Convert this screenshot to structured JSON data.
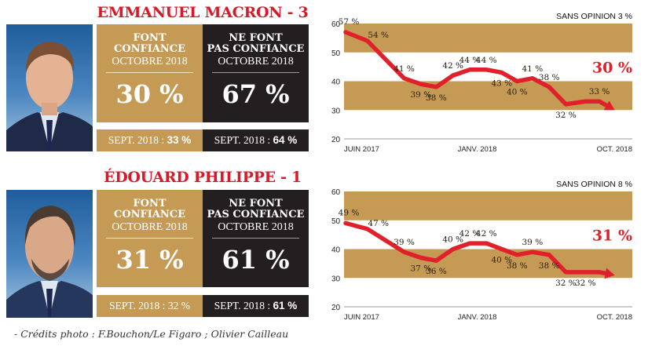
{
  "credit": "- Crédits photo : F.Bouchon/Le Figaro ; Olivier Cailleau",
  "colors": {
    "gold": "#c49a55",
    "black": "#231f20",
    "red": "#e0202a",
    "title_red": "#d7192a"
  },
  "panels": [
    {
      "title": "EMMANUEL MACRON - 3",
      "photo_alt": "Emmanuel Macron portrait",
      "trust": {
        "heading_line1": "FONT",
        "heading_line2": "CONFIANCE",
        "period": "OCTOBRE 2018",
        "value": "30 %",
        "prev_label": "SEPT. 2018 :",
        "prev_value": "33 %"
      },
      "distrust": {
        "heading_line1": "NE FONT",
        "heading_line2": "PAS CONFIANCE",
        "period": "OCTOBRE 2018",
        "value": "67 %",
        "prev_label": "SEPT. 2018 :",
        "prev_value": "64 %"
      }
    },
    {
      "title": "ÉDOUARD PHILIPPE  - 1",
      "photo_alt": "Édouard Philippe portrait",
      "trust": {
        "heading_line1": "FONT",
        "heading_line2": "CONFIANCE",
        "period": "OCTOBRE 2018",
        "value": "31 %",
        "prev_label": "SEPT. 2018 :",
        "prev_value": "32 %"
      },
      "distrust": {
        "heading_line1": "NE FONT",
        "heading_line2": "PAS CONFIANCE",
        "period": "OCTOBRE 2018",
        "value": "61 %",
        "prev_label": "SEPT. 2018 :",
        "prev_value": "61 %"
      }
    }
  ],
  "chart_data": [
    {
      "type": "line",
      "title": "Emmanuel Macron - font confiance",
      "annotation": "SANS OPINION 3 %",
      "final_label": "30 %",
      "xlabel": "",
      "ylabel": "",
      "ylim": [
        20,
        60
      ],
      "yticks": [
        60,
        50,
        40,
        30,
        20
      ],
      "xtick_labels": [
        "JUIN 2017",
        "JANV. 2018",
        "OCT. 2018"
      ],
      "bands": [
        [
          50,
          60
        ],
        [
          30,
          40
        ]
      ],
      "x": [
        0,
        1,
        2,
        3,
        4,
        5,
        6,
        7,
        8,
        9,
        10,
        11,
        12,
        13,
        14,
        15
      ],
      "values": [
        57,
        54,
        41,
        39,
        38,
        42,
        44,
        44,
        43,
        40,
        41,
        38,
        32,
        33,
        33,
        30
      ],
      "labels": [
        "57 %",
        "54 %",
        "41 %",
        "39 %",
        "38 %",
        "42 %",
        "44 %",
        "44 %",
        "43 %",
        "40 %",
        "41 %",
        "38 %",
        "32 %",
        "",
        "33 %",
        ""
      ],
      "label_pos": [
        "above",
        "above-right",
        "above",
        "below",
        "below",
        "above",
        "above",
        "above",
        "below",
        "below",
        "above",
        "above",
        "below",
        "",
        "above",
        ""
      ]
    },
    {
      "type": "line",
      "title": "Édouard Philippe - font confiance",
      "annotation": "SANS OPINION 8 %",
      "final_label": "31 %",
      "xlabel": "",
      "ylabel": "",
      "ylim": [
        20,
        60
      ],
      "yticks": [
        60,
        50,
        40,
        30,
        20
      ],
      "xtick_labels": [
        "JUIN 2017",
        "JANV. 2018",
        "OCT. 2018"
      ],
      "bands": [
        [
          50,
          60
        ],
        [
          30,
          40
        ]
      ],
      "x": [
        0,
        1,
        2,
        3,
        4,
        5,
        6,
        7,
        8,
        9,
        10,
        11,
        12,
        13,
        14,
        15
      ],
      "values": [
        49,
        47,
        39,
        37,
        36,
        40,
        42,
        42,
        40,
        38,
        39,
        38,
        32,
        32,
        32,
        31
      ],
      "labels": [
        "49 %",
        "47 %",
        "39 %",
        "37 %",
        "36 %",
        "40 %",
        "42 %",
        "42 %",
        "40 %",
        "38 %",
        "39 %",
        "38 %",
        "32 %",
        "32 %",
        "",
        ""
      ],
      "label_pos": [
        "above",
        "above-right",
        "above",
        "below",
        "below",
        "above",
        "above",
        "above",
        "below",
        "below",
        "above",
        "below",
        "below",
        "below",
        "",
        ""
      ]
    }
  ]
}
